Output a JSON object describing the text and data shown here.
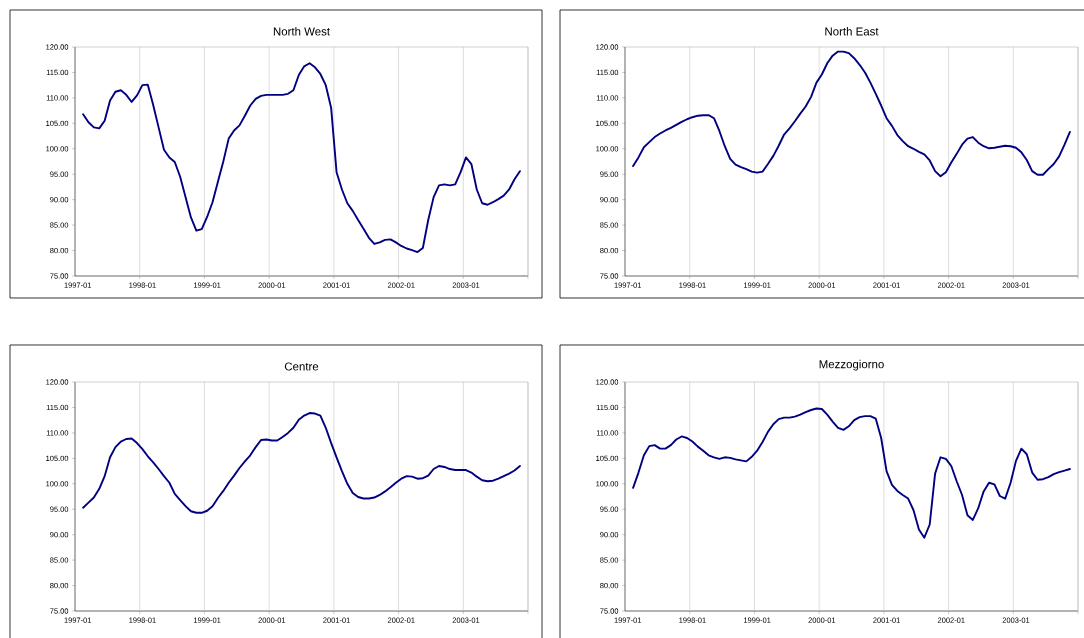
{
  "chart_data": [
    {
      "type": "line",
      "title": "North West",
      "grid": "x",
      "ylim": [
        75,
        120
      ],
      "yticks": [
        {
          "value": 75,
          "label": "75.00"
        },
        {
          "value": 80,
          "label": "80.00"
        },
        {
          "value": 85,
          "label": "85.00"
        },
        {
          "value": 90,
          "label": "90.00"
        },
        {
          "value": 95,
          "label": "95.00"
        },
        {
          "value": 100,
          "label": "100.00"
        },
        {
          "value": 105,
          "label": "105.00"
        },
        {
          "value": 110,
          "label": "110.00"
        },
        {
          "value": 115,
          "label": "115.00"
        },
        {
          "value": 120,
          "label": "120.00"
        }
      ],
      "categories": [
        "1997-01",
        null,
        null,
        null,
        null,
        null,
        null,
        null,
        null,
        null,
        null,
        null,
        "1998-01",
        null,
        null,
        null,
        null,
        null,
        null,
        null,
        null,
        null,
        null,
        null,
        "1999-01",
        null,
        null,
        null,
        null,
        null,
        null,
        null,
        null,
        null,
        null,
        null,
        "2000-01",
        null,
        null,
        null,
        null,
        null,
        null,
        null,
        null,
        null,
        null,
        null,
        "2001-01",
        null,
        null,
        null,
        null,
        null,
        null,
        null,
        null,
        null,
        null,
        null,
        "2002-01",
        null,
        null,
        null,
        null,
        null,
        null,
        null,
        null,
        null,
        null,
        null,
        "2003-01",
        null,
        null,
        null,
        null,
        null,
        null,
        null,
        null,
        null,
        null,
        null
      ],
      "series": [
        {
          "color": "#000080",
          "values": [
            null,
            106.8,
            105.2,
            104.2,
            104.0,
            105.5,
            109.5,
            111.2,
            111.5,
            110.6,
            109.2,
            110.5,
            112.5,
            112.6,
            108.6,
            104.2,
            99.8,
            98.3,
            97.4,
            94.5,
            90.5,
            86.5,
            83.9,
            84.2,
            86.6,
            89.5,
            93.5,
            97.5,
            102.0,
            103.6,
            104.6,
            106.5,
            108.5,
            109.8,
            110.4,
            110.6,
            110.6,
            110.6,
            110.6,
            110.8,
            111.5,
            114.5,
            116.2,
            116.8,
            116.0,
            114.7,
            112.5,
            108.0,
            95.4,
            92.0,
            89.3,
            87.8,
            86.0,
            84.3,
            82.5,
            81.3,
            81.6,
            82.1,
            82.2,
            81.6,
            80.9,
            80.4,
            80.1,
            79.7,
            80.5,
            86.0,
            90.5,
            92.8,
            93.0,
            92.8,
            93.0,
            95.4,
            98.3,
            97.0,
            92.0,
            89.3,
            89.0,
            89.5,
            90.1,
            90.8,
            92.0,
            94.0,
            95.6,
            null
          ]
        }
      ]
    },
    {
      "type": "line",
      "title": "North East",
      "grid": "x",
      "ylim": [
        75,
        120
      ],
      "yticks": [
        {
          "value": 75,
          "label": "75.00"
        },
        {
          "value": 80,
          "label": "80.00"
        },
        {
          "value": 85,
          "label": "85.00"
        },
        {
          "value": 90,
          "label": "90.00"
        },
        {
          "value": 95,
          "label": "95.00"
        },
        {
          "value": 100,
          "label": "100.00"
        },
        {
          "value": 105,
          "label": "105.00"
        },
        {
          "value": 110,
          "label": "110.00"
        },
        {
          "value": 115,
          "label": "115.00"
        },
        {
          "value": 120,
          "label": "120.00"
        }
      ],
      "categories": [
        "1997-01",
        null,
        null,
        null,
        null,
        null,
        null,
        null,
        null,
        null,
        null,
        null,
        "1998-01",
        null,
        null,
        null,
        null,
        null,
        null,
        null,
        null,
        null,
        null,
        null,
        "1999-01",
        null,
        null,
        null,
        null,
        null,
        null,
        null,
        null,
        null,
        null,
        null,
        "2000-01",
        null,
        null,
        null,
        null,
        null,
        null,
        null,
        null,
        null,
        null,
        null,
        "2001-01",
        null,
        null,
        null,
        null,
        null,
        null,
        null,
        null,
        null,
        null,
        null,
        "2002-01",
        null,
        null,
        null,
        null,
        null,
        null,
        null,
        null,
        null,
        null,
        null,
        "2003-01",
        null,
        null,
        null,
        null,
        null,
        null,
        null,
        null,
        null,
        null,
        null
      ],
      "series": [
        {
          "color": "#000080",
          "values": [
            null,
            96.6,
            98.3,
            100.3,
            101.3,
            102.3,
            103.0,
            103.6,
            104.1,
            104.7,
            105.3,
            105.8,
            106.2,
            106.5,
            106.6,
            106.6,
            106.0,
            103.5,
            100.5,
            98.0,
            96.9,
            96.4,
            96.0,
            95.5,
            95.3,
            95.5,
            97.0,
            98.6,
            100.6,
            102.8,
            104.0,
            105.4,
            106.9,
            108.3,
            110.2,
            113.0,
            114.6,
            116.8,
            118.3,
            119.1,
            119.1,
            118.8,
            117.8,
            116.5,
            115.0,
            113.0,
            110.8,
            108.5,
            106.0,
            104.5,
            102.7,
            101.5,
            100.5,
            100.0,
            99.4,
            98.9,
            97.7,
            95.6,
            94.6,
            95.4,
            97.3,
            99.0,
            100.8,
            102.0,
            102.3,
            101.2,
            100.5,
            100.1,
            100.2,
            100.4,
            100.6,
            100.5,
            100.2,
            99.3,
            97.8,
            95.6,
            94.9,
            94.9,
            96.0,
            97.0,
            98.5,
            100.8,
            103.3,
            null
          ]
        }
      ]
    },
    {
      "type": "line",
      "title": "Centre",
      "grid": "x",
      "ylim": [
        75,
        120
      ],
      "yticks": [
        {
          "value": 75,
          "label": "75.00"
        },
        {
          "value": 80,
          "label": "80.00"
        },
        {
          "value": 85,
          "label": "85.00"
        },
        {
          "value": 90,
          "label": "90.00"
        },
        {
          "value": 95,
          "label": "95.00"
        },
        {
          "value": 100,
          "label": "100.00"
        },
        {
          "value": 105,
          "label": "105.00"
        },
        {
          "value": 110,
          "label": "110.00"
        },
        {
          "value": 115,
          "label": "115.00"
        },
        {
          "value": 120,
          "label": "120.00"
        }
      ],
      "categories": [
        "1997-01",
        null,
        null,
        null,
        null,
        null,
        null,
        null,
        null,
        null,
        null,
        null,
        "1998-01",
        null,
        null,
        null,
        null,
        null,
        null,
        null,
        null,
        null,
        null,
        null,
        "1999-01",
        null,
        null,
        null,
        null,
        null,
        null,
        null,
        null,
        null,
        null,
        null,
        "2000-01",
        null,
        null,
        null,
        null,
        null,
        null,
        null,
        null,
        null,
        null,
        null,
        "2001-01",
        null,
        null,
        null,
        null,
        null,
        null,
        null,
        null,
        null,
        null,
        null,
        "2002-01",
        null,
        null,
        null,
        null,
        null,
        null,
        null,
        null,
        null,
        null,
        null,
        "2003-01",
        null,
        null,
        null,
        null,
        null,
        null,
        null,
        null,
        null,
        null,
        null
      ],
      "series": [
        {
          "color": "#000080",
          "values": [
            null,
            95.3,
            96.3,
            97.3,
            99.0,
            101.5,
            105.2,
            107.2,
            108.3,
            108.8,
            108.9,
            108.0,
            106.8,
            105.4,
            104.2,
            102.9,
            101.5,
            100.2,
            98.0,
            96.8,
            95.6,
            94.6,
            94.3,
            94.3,
            94.7,
            95.6,
            97.2,
            98.6,
            100.2,
            101.6,
            103.1,
            104.4,
            105.6,
            107.2,
            108.6,
            108.7,
            108.5,
            108.5,
            109.2,
            110.0,
            111.0,
            112.6,
            113.4,
            113.9,
            113.8,
            113.4,
            111.0,
            108.0,
            105.2,
            102.5,
            100.0,
            98.2,
            97.4,
            97.1,
            97.1,
            97.3,
            97.8,
            98.5,
            99.3,
            100.2,
            101.0,
            101.5,
            101.4,
            101.0,
            101.1,
            101.6,
            102.9,
            103.5,
            103.3,
            102.9,
            102.7,
            102.7,
            102.7,
            102.2,
            101.4,
            100.7,
            100.5,
            100.6,
            101.0,
            101.5,
            102.0,
            102.6,
            103.5,
            null
          ]
        }
      ]
    },
    {
      "type": "line",
      "title": "Mezzogiorno",
      "grid": "x",
      "ylim": [
        75,
        120
      ],
      "yticks": [
        {
          "value": 75,
          "label": "75.00"
        },
        {
          "value": 80,
          "label": "80.00"
        },
        {
          "value": 85,
          "label": "85.00"
        },
        {
          "value": 90,
          "label": "90.00"
        },
        {
          "value": 95,
          "label": "95.00"
        },
        {
          "value": 100,
          "label": "100.00"
        },
        {
          "value": 105,
          "label": "105.00"
        },
        {
          "value": 110,
          "label": "110.00"
        },
        {
          "value": 115,
          "label": "115.00"
        },
        {
          "value": 120,
          "label": "120.00"
        }
      ],
      "categories": [
        "1997-01",
        null,
        null,
        null,
        null,
        null,
        null,
        null,
        null,
        null,
        null,
        null,
        "1998-01",
        null,
        null,
        null,
        null,
        null,
        null,
        null,
        null,
        null,
        null,
        null,
        "1999-01",
        null,
        null,
        null,
        null,
        null,
        null,
        null,
        null,
        null,
        null,
        null,
        "2000-01",
        null,
        null,
        null,
        null,
        null,
        null,
        null,
        null,
        null,
        null,
        null,
        "2001-01",
        null,
        null,
        null,
        null,
        null,
        null,
        null,
        null,
        null,
        null,
        null,
        "2002-01",
        null,
        null,
        null,
        null,
        null,
        null,
        null,
        null,
        null,
        null,
        null,
        "2003-01",
        null,
        null,
        null,
        null,
        null,
        null,
        null,
        null,
        null,
        null,
        null
      ],
      "series": [
        {
          "color": "#000080",
          "values": [
            null,
            99.2,
            102.2,
            105.6,
            107.4,
            107.6,
            106.9,
            106.9,
            107.6,
            108.7,
            109.3,
            109.0,
            108.3,
            107.3,
            106.5,
            105.6,
            105.2,
            104.9,
            105.2,
            105.1,
            104.8,
            104.6,
            104.4,
            105.3,
            106.5,
            108.2,
            110.2,
            111.7,
            112.7,
            113.0,
            113.0,
            113.2,
            113.6,
            114.1,
            114.5,
            114.8,
            114.7,
            113.6,
            112.2,
            111.0,
            110.6,
            111.3,
            112.5,
            113.1,
            113.3,
            113.3,
            112.8,
            109.0,
            102.5,
            99.8,
            98.6,
            97.8,
            97.1,
            94.8,
            91.0,
            89.4,
            92.0,
            102.0,
            105.2,
            104.9,
            103.5,
            100.5,
            97.8,
            93.8,
            92.9,
            95.2,
            98.5,
            100.2,
            99.9,
            97.6,
            97.1,
            100.2,
            104.5,
            106.9,
            105.8,
            102.2,
            100.8,
            100.9,
            101.3,
            101.9,
            102.3,
            102.6,
            102.9,
            null
          ]
        }
      ]
    }
  ]
}
